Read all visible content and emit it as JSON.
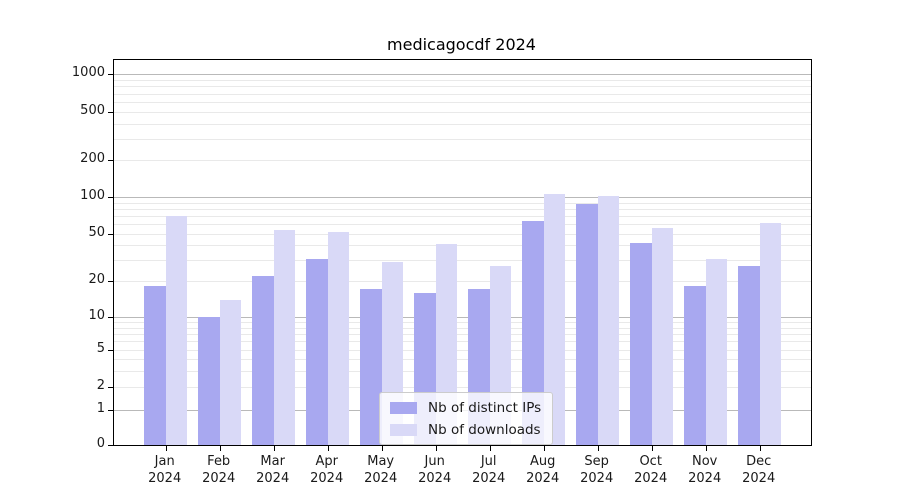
{
  "title": "medicagocdf 2024",
  "chart_data": {
    "type": "bar",
    "title": "medicagocdf 2024",
    "categories": [
      "Jan",
      "Feb",
      "Mar",
      "Apr",
      "May",
      "Jun",
      "Jul",
      "Aug",
      "Sep",
      "Oct",
      "Nov",
      "Dec"
    ],
    "year": "2024",
    "series": [
      {
        "name": "Nb of distinct IPs",
        "color": "#a8a8f0",
        "values": [
          18,
          10,
          22,
          31,
          17,
          16,
          17,
          64,
          87,
          42,
          18,
          27
        ]
      },
      {
        "name": "Nb of downloads",
        "color": "#d9d9f7",
        "values": [
          70,
          14,
          54,
          52,
          29,
          41,
          27,
          106,
          102,
          56,
          31,
          61
        ]
      }
    ],
    "xlabel": "",
    "ylabel": "",
    "yticks": [
      0,
      1,
      2,
      5,
      10,
      20,
      50,
      100,
      200,
      500,
      1000
    ],
    "minor_grid_values": [
      3,
      4,
      6,
      7,
      8,
      9,
      30,
      40,
      60,
      70,
      80,
      90,
      300,
      400,
      600,
      700,
      800,
      900
    ],
    "decade_grid_values": [
      1,
      10,
      100,
      1000
    ],
    "scale": "symlog",
    "ylim": [
      0,
      1300
    ],
    "grid": true,
    "legend_position": "lower center"
  },
  "colors": {
    "distinct_ips": "#a8a8f0",
    "downloads": "#d9d9f7",
    "grid_major": "#b9b9b9",
    "grid_minor": "#e9e9e9"
  }
}
